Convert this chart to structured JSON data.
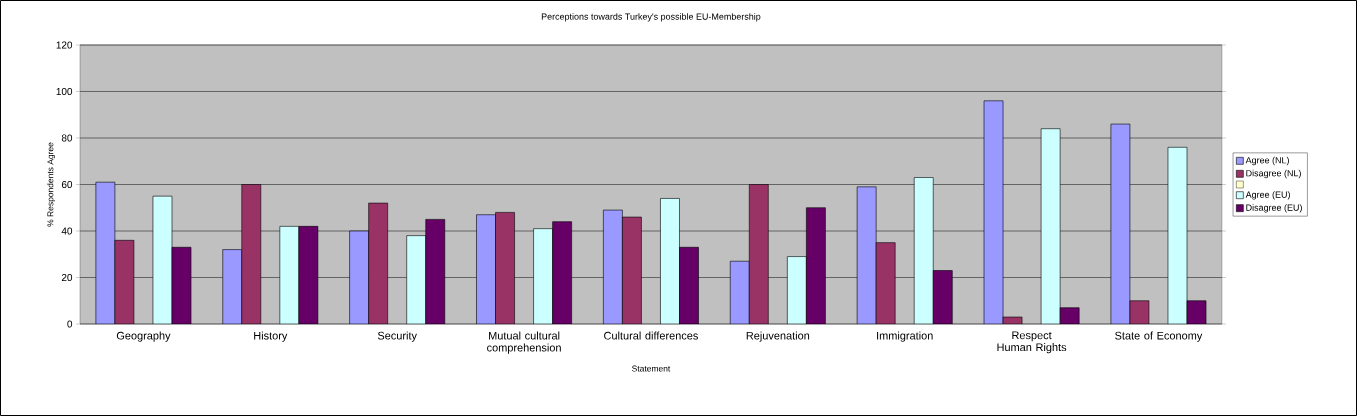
{
  "chart_data": {
    "type": "bar",
    "title": "Perceptions towards Turkey's possible EU-Membership",
    "xlabel": "Statement",
    "ylabel": "% Respondents Agree",
    "categories": [
      "Geography",
      "History",
      "Security",
      "Mutual cultural comprehension",
      "Cultural differences",
      "Rejuvenation",
      "Immigration",
      "Respect Human Rights",
      "State of Economy"
    ],
    "series": [
      {
        "name": "Agree (NL)",
        "color": "#9999ff",
        "values": [
          61,
          32,
          40,
          47,
          49,
          27,
          59,
          96,
          86
        ]
      },
      {
        "name": "Disagree (NL)",
        "color": "#993366",
        "values": [
          36,
          60,
          52,
          48,
          46,
          60,
          35,
          3,
          10
        ]
      },
      {
        "color": "#ffffcc",
        "values": [
          null,
          null,
          null,
          null,
          null,
          null,
          null,
          null,
          null
        ]
      },
      {
        "name": "Agree (EU)",
        "color": "#ccffff",
        "values": [
          55,
          42,
          38,
          41,
          54,
          29,
          63,
          84,
          76
        ]
      },
      {
        "name": "Disagree (EU)",
        "color": "#660066",
        "values": [
          33,
          42,
          45,
          44,
          33,
          50,
          23,
          7,
          10
        ]
      }
    ],
    "ylim": [
      0,
      120
    ],
    "yticks": [
      0,
      20,
      40,
      60,
      80,
      100,
      120
    ],
    "grid": "y",
    "legend": "right"
  }
}
